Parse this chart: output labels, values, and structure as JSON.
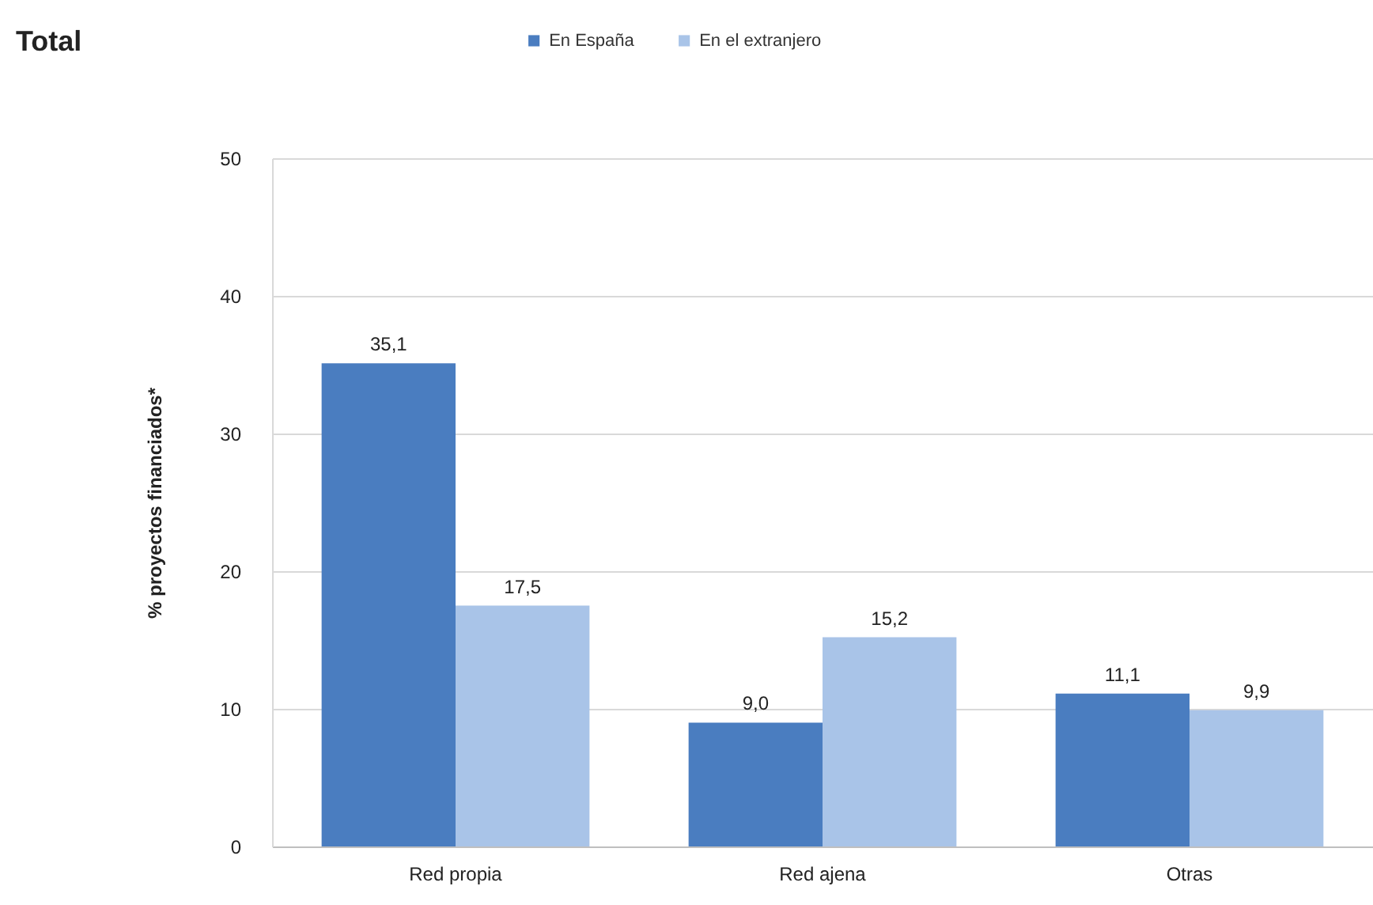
{
  "chart_data": {
    "type": "bar",
    "title": "Total",
    "ylabel": "% proyectos financiados*",
    "categories": [
      "Red propia",
      "Red ajena",
      "Otras"
    ],
    "series": [
      {
        "name": "En España",
        "color": "#4a7dc0",
        "values": [
          35.1,
          9.0,
          11.1
        ],
        "value_labels": [
          "35,1",
          "9,0",
          "11,1"
        ]
      },
      {
        "name": "En el extranjero",
        "color": "#a9c4e8",
        "values": [
          17.5,
          15.2,
          9.9
        ],
        "value_labels": [
          "17,5",
          "15,2",
          "9,9"
        ]
      }
    ],
    "ylim": [
      0,
      50
    ],
    "yticks": [
      0,
      10,
      20,
      30,
      40,
      50
    ],
    "grid": "y",
    "legend": "top"
  }
}
